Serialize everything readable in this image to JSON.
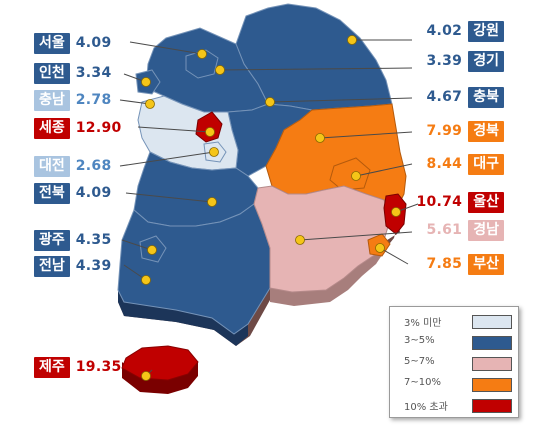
{
  "colors": {
    "under3": "#dce6f0",
    "from3to5": "#2e5a8f",
    "from5to7": "#e6b4b4",
    "from7to10": "#f57c13",
    "over10": "#c00000"
  },
  "regions": [
    {
      "name": "서울",
      "value": "4.09",
      "category": "from3to5"
    },
    {
      "name": "인천",
      "value": "3.34",
      "category": "from3to5"
    },
    {
      "name": "충남",
      "value": "2.78",
      "category": "under3"
    },
    {
      "name": "세종",
      "value": "12.90",
      "category": "over10"
    },
    {
      "name": "대전",
      "value": "2.68",
      "category": "under3"
    },
    {
      "name": "전북",
      "value": "4.09",
      "category": "from3to5"
    },
    {
      "name": "광주",
      "value": "4.35",
      "category": "from3to5"
    },
    {
      "name": "전남",
      "value": "4.39",
      "category": "from3to5"
    },
    {
      "name": "제주",
      "value": "19.35",
      "category": "over10"
    },
    {
      "name": "강원",
      "value": "4.02",
      "category": "from3to5"
    },
    {
      "name": "경기",
      "value": "3.39",
      "category": "from3to5"
    },
    {
      "name": "충북",
      "value": "4.67",
      "category": "from3to5"
    },
    {
      "name": "경북",
      "value": "7.99",
      "category": "from7to10"
    },
    {
      "name": "대구",
      "value": "8.44",
      "category": "from7to10"
    },
    {
      "name": "울산",
      "value": "10.74",
      "category": "over10"
    },
    {
      "name": "경남",
      "value": "5.61",
      "category": "from5to7"
    },
    {
      "name": "부산",
      "value": "7.85",
      "category": "from7to10"
    }
  ],
  "legend": {
    "items": [
      {
        "label": "3% 미만",
        "category": "under3"
      },
      {
        "label": "3~5%",
        "category": "from3to5"
      },
      {
        "label": "5~7%",
        "category": "from5to7"
      },
      {
        "label": "7~10%",
        "category": "from7to10"
      },
      {
        "label": "10% 초과",
        "category": "over10"
      }
    ]
  }
}
